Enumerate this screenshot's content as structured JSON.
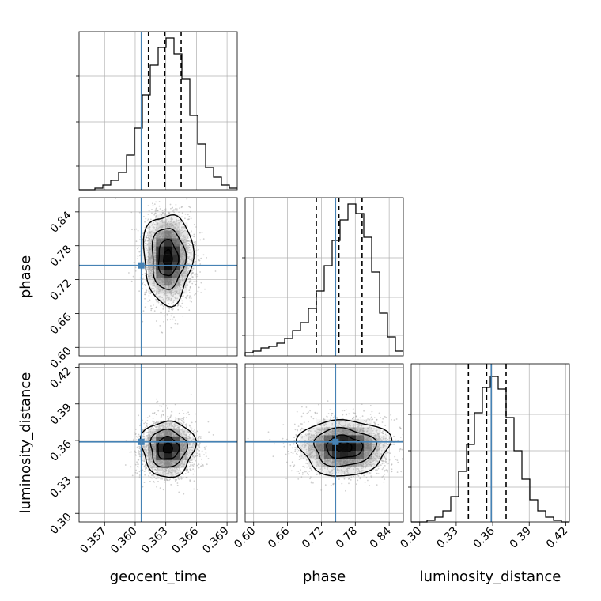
{
  "colors": {
    "truth": "#4682b4",
    "hist": "#000000",
    "grid": "#b0b0b0",
    "points": "#a8a8a8"
  },
  "chart_data": {
    "type": "corner",
    "parameters": [
      "geocent_time",
      "phase",
      "luminosity_distance"
    ],
    "axis_labels": {
      "geocent_time": "geocent_time",
      "phase": "phase",
      "luminosity_distance": "luminosity_distance"
    },
    "ranges": {
      "geocent_time": [
        0.3545,
        0.37
      ],
      "phase": [
        0.585,
        0.865
      ],
      "luminosity_distance": [
        0.293,
        0.423
      ]
    },
    "ticks": {
      "geocent_time": [
        0.357,
        0.36,
        0.363,
        0.366,
        0.369
      ],
      "phase": [
        0.6,
        0.66,
        0.72,
        0.78,
        0.84
      ],
      "luminosity_distance": [
        0.3,
        0.33,
        0.36,
        0.39,
        0.42
      ]
    },
    "tick_labels": {
      "geocent_time": [
        "0.357",
        "0.360",
        "0.363",
        "0.366",
        "0.369"
      ],
      "phase": [
        "0.60",
        "0.66",
        "0.72",
        "0.78",
        "0.84"
      ],
      "luminosity_distance": [
        "0.30",
        "0.33",
        "0.36",
        "0.39",
        "0.42"
      ]
    },
    "truths": {
      "geocent_time": 0.3606,
      "phase": 0.745,
      "luminosity_distance": 0.3588
    },
    "quantiles": {
      "geocent_time": [
        0.3613,
        0.3629,
        0.3645
      ],
      "phase": [
        0.711,
        0.751,
        0.792
      ],
      "luminosity_distance": [
        0.34,
        0.355,
        0.371
      ]
    },
    "histograms": {
      "geocent_time": [
        0.0,
        0.0,
        0.01,
        0.03,
        0.06,
        0.11,
        0.22,
        0.39,
        0.6,
        0.79,
        0.9,
        0.96,
        0.86,
        0.7,
        0.47,
        0.29,
        0.14,
        0.08,
        0.03,
        0.01
      ],
      "phase": [
        0.02,
        0.03,
        0.05,
        0.06,
        0.08,
        0.11,
        0.16,
        0.21,
        0.3,
        0.41,
        0.57,
        0.73,
        0.86,
        0.96,
        0.9,
        0.75,
        0.53,
        0.27,
        0.12,
        0.03
      ],
      "luminosity_distance": [
        0.0,
        0.0,
        0.01,
        0.03,
        0.07,
        0.16,
        0.32,
        0.49,
        0.69,
        0.85,
        0.92,
        0.84,
        0.66,
        0.45,
        0.27,
        0.14,
        0.07,
        0.03,
        0.01,
        0.0
      ]
    },
    "density_center": {
      "geocent_time_vs_phase": {
        "x": 0.3632,
        "y": 0.758
      },
      "geocent_time_vs_luminosity_distance": {
        "x": 0.3632,
        "y": 0.3535
      },
      "phase_vs_luminosity_distance": {
        "x": 0.76,
        "y": 0.3545
      }
    },
    "grid": true
  }
}
